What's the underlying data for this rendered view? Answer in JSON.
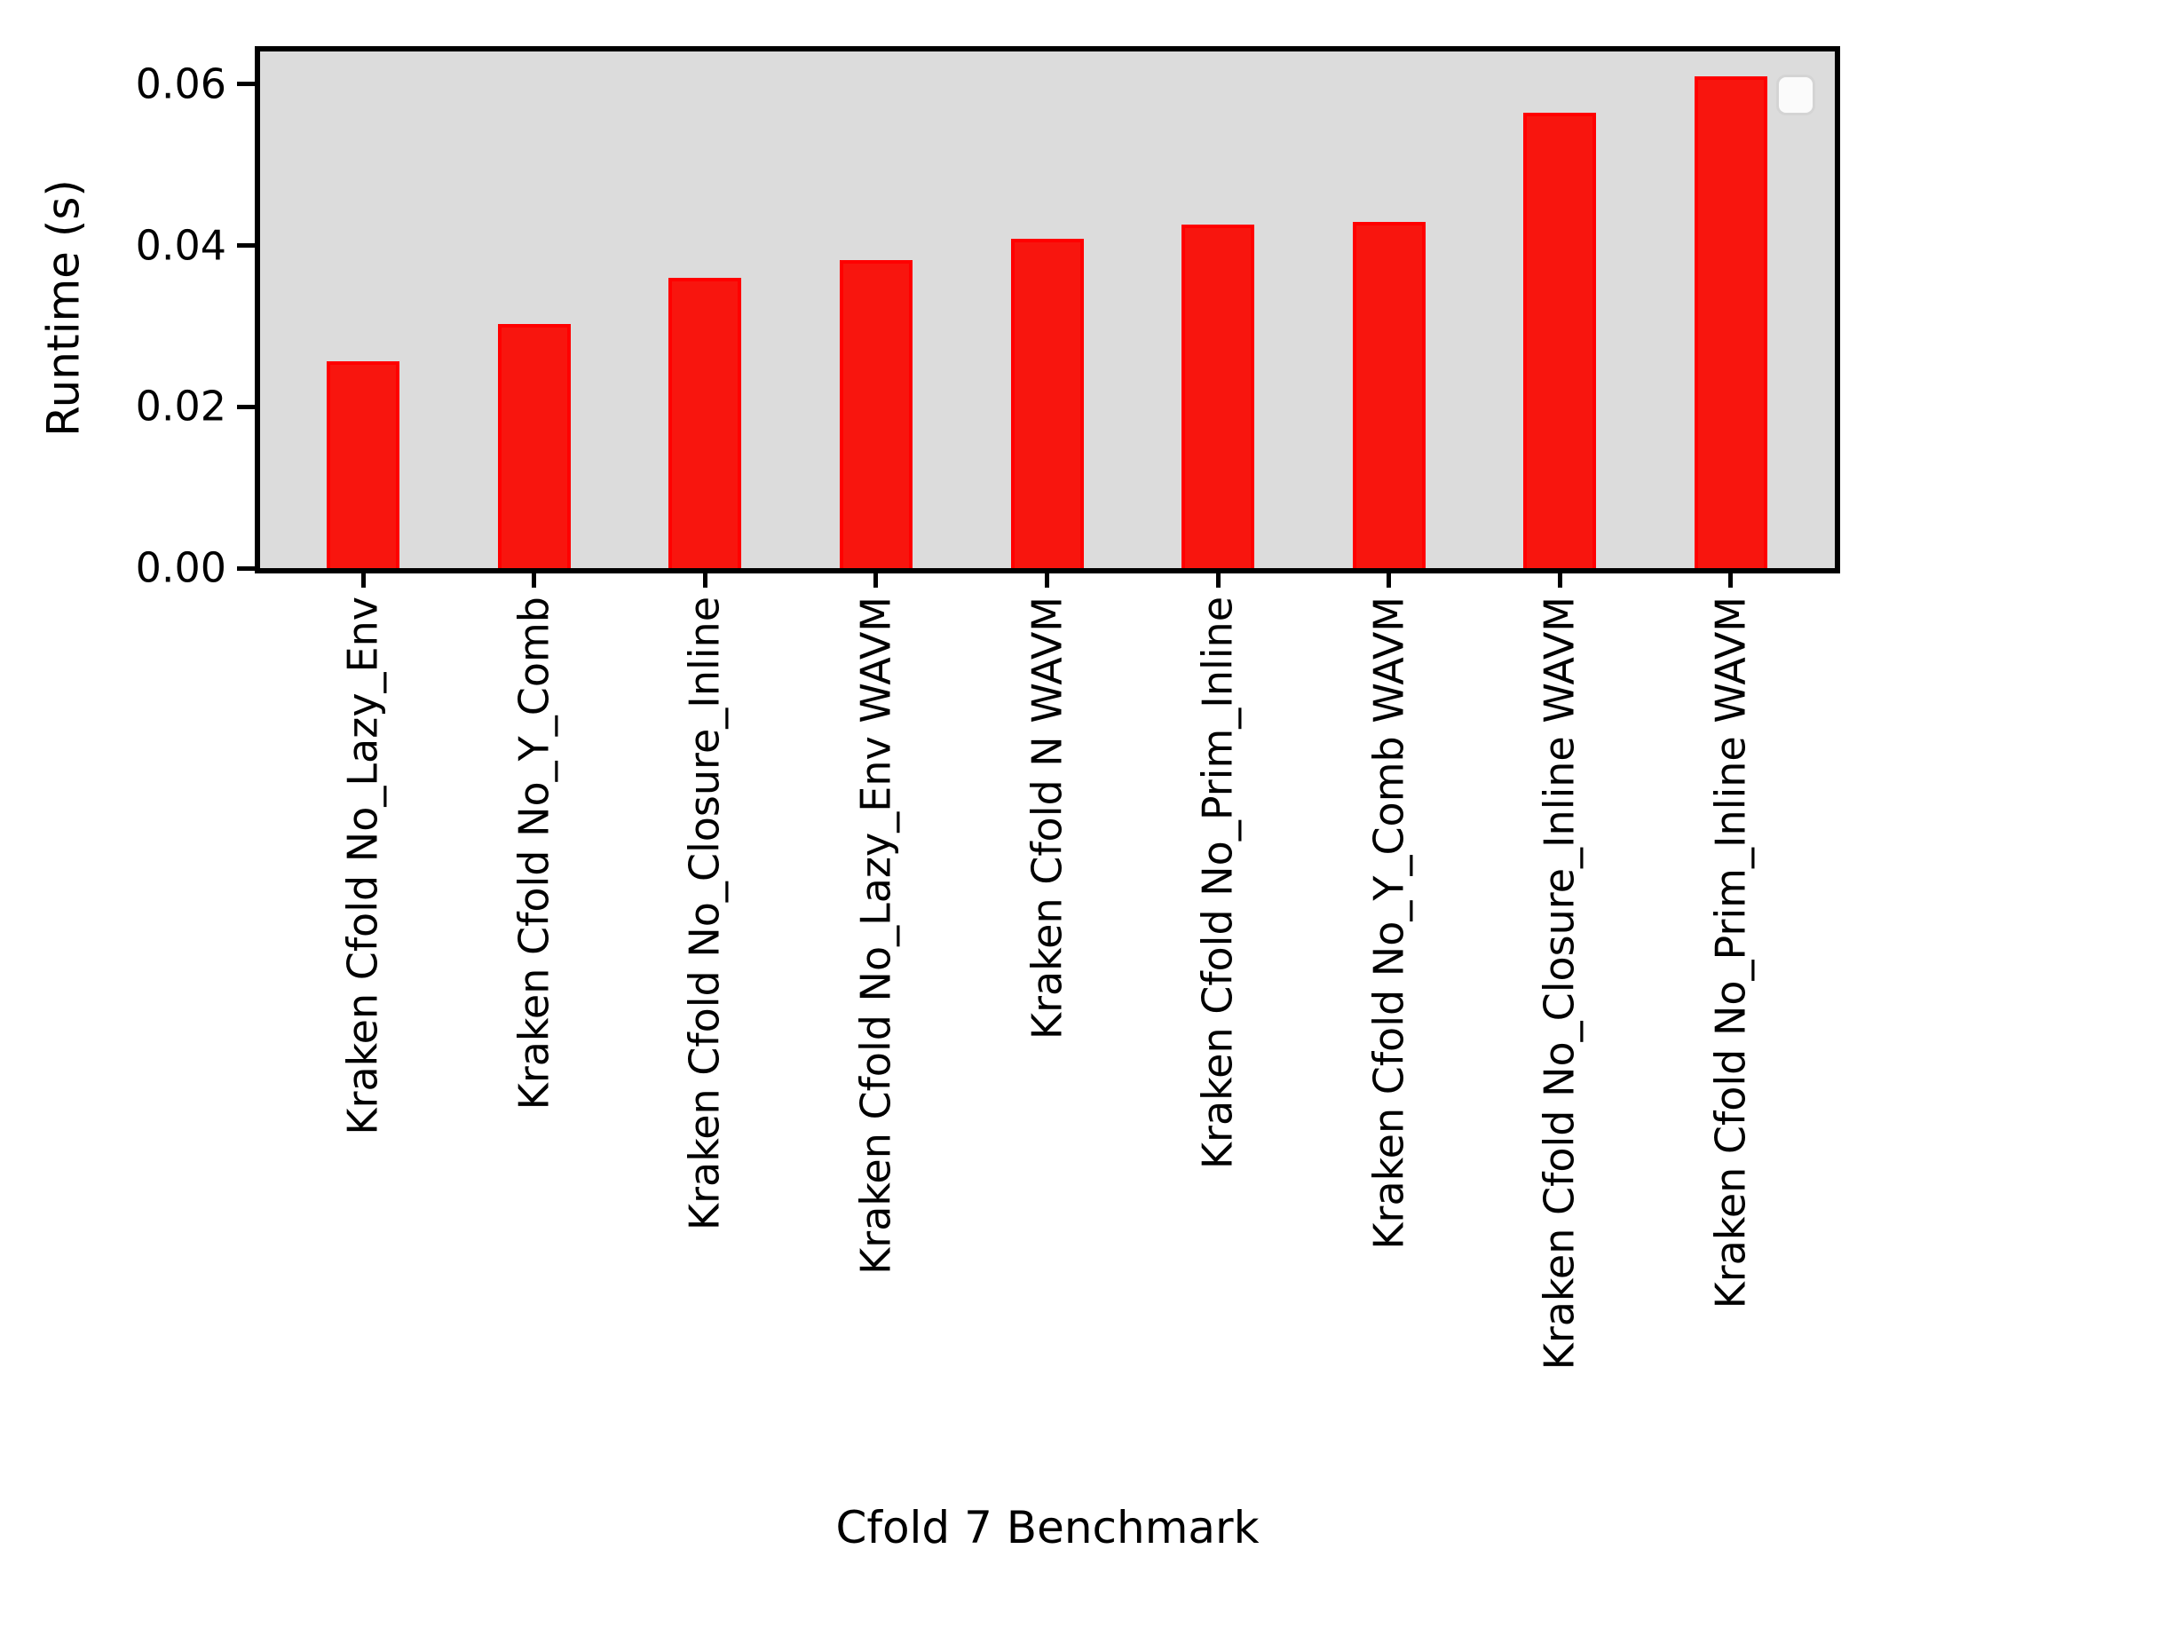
{
  "chart_data": {
    "type": "bar",
    "title": "",
    "xlabel": "Cfold 7 Benchmark",
    "ylabel": "Runtime (s)",
    "categories": [
      "Kraken Cfold No_Lazy_Env",
      "Kraken Cfold No_Y_Comb",
      "Kraken Cfold No_Closure_Inline",
      "Kraken Cfold No_Lazy_Env WAVM",
      "Kraken Cfold N WAVM",
      "Kraken Cfold No_Prim_Inline",
      "Kraken Cfold No_Y_Comb WAVM",
      "Kraken Cfold No_Closure_Inline WAVM",
      "Kraken Cfold No_Prim_Inline WAVM"
    ],
    "values": [
      0.0256,
      0.0303,
      0.036,
      0.0382,
      0.0408,
      0.0426,
      0.0429,
      0.0565,
      0.061
    ],
    "yticks": [
      {
        "value": 0.0,
        "label": "0.00"
      },
      {
        "value": 0.02,
        "label": "0.02"
      },
      {
        "value": 0.04,
        "label": "0.04"
      },
      {
        "value": 0.06,
        "label": "0.06"
      }
    ],
    "ylim": [
      0.0,
      0.06405
    ],
    "grid": false,
    "legend": {
      "visible": true,
      "entries": [],
      "position": "upper right"
    },
    "colors": {
      "bar_fill": "#f8150e",
      "bar_edge": "#ff0000",
      "plot_background": "#dcdcdc",
      "figure_background": "#ffffff",
      "axis_color": "#000000",
      "text_color": "#000000",
      "legend_fill": "#fbfbfb",
      "legend_border": "#d4d4d4"
    }
  }
}
